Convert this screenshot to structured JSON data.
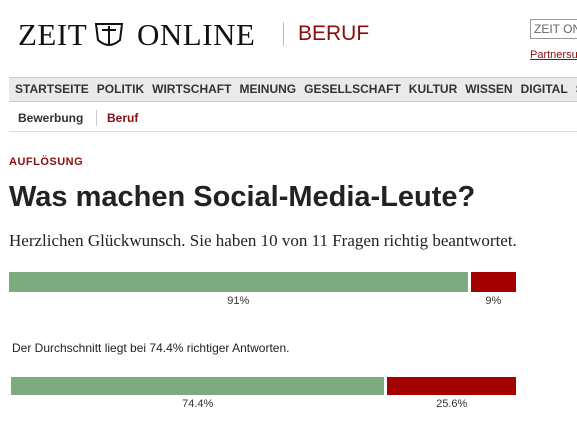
{
  "header": {
    "logo_left": "ZEIT",
    "logo_right": "ONLINE",
    "section": "BERUF",
    "search": "ZEIT ON",
    "partner_link": "Partnersu"
  },
  "nav": [
    "STARTSEITE",
    "POLITIK",
    "WIRTSCHAFT",
    "MEINUNG",
    "GESELLSCHAFT",
    "KULTUR",
    "WISSEN",
    "DIGITAL",
    "STUD"
  ],
  "subnav": [
    "Bewerbung",
    "Beruf"
  ],
  "article": {
    "kicker": "AUFLÖSUNG",
    "title": "Was machen Social-Media-Leute?",
    "subtitle": "Herzlichen Glückwunsch. Sie haben 10 von 11 Fragen richtig beantwortet.",
    "average_text": "Der Durchschnitt liegt bei 74.4% richtiger Antworten."
  },
  "results": [
    {
      "values": [
        91,
        9
      ],
      "value_labels": [
        "91%",
        "9%"
      ],
      "colors": [
        "#7daa7e",
        "#a30000"
      ]
    },
    {
      "values": [
        74.4,
        25.6
      ],
      "value_labels": [
        "74.4%",
        "25.6%"
      ],
      "colors": [
        "#7daa7e",
        "#a30000"
      ]
    }
  ]
}
